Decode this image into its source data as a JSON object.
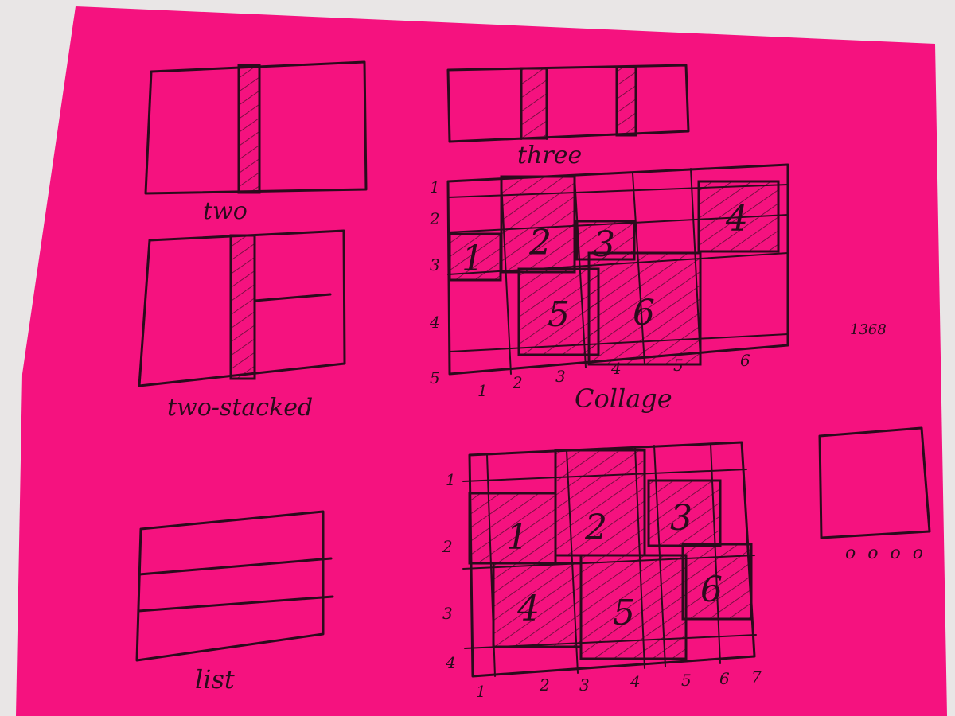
{
  "colors": {
    "paper": "#f5127f",
    "paper_edge": "#e9117a",
    "ink": "#2a0b1c",
    "background": "#e9e6e6"
  },
  "sketches": {
    "two": {
      "label": "two"
    },
    "three": {
      "label": "three"
    },
    "two_stacked": {
      "label": "two-stacked"
    },
    "collage": {
      "label": "Collage",
      "row_numbers": [
        "1",
        "2",
        "3",
        "4",
        "5"
      ],
      "column_numbers": [
        "1",
        "2",
        "3",
        "4",
        "5",
        "6"
      ],
      "tiles": [
        "1",
        "2",
        "3",
        "4",
        "5",
        "6"
      ]
    },
    "list": {
      "label": "list"
    },
    "grid": {
      "row_numbers": [
        "1",
        "2",
        "3",
        "4"
      ],
      "column_numbers": [
        "1",
        "2",
        "3",
        "4",
        "5",
        "6",
        "7"
      ],
      "tiles": [
        "1",
        "2",
        "3",
        "4",
        "5",
        "6"
      ]
    },
    "single": {
      "dots": "o o o o"
    }
  },
  "side_note": "1368"
}
